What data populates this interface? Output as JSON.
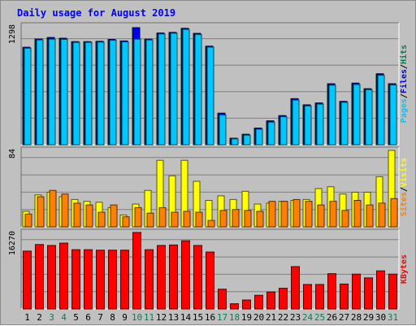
{
  "chart_data": [
    {
      "type": "bar",
      "title": "Daily usage for August 2019",
      "categories": [
        "1",
        "2",
        "3",
        "4",
        "5",
        "6",
        "7",
        "8",
        "9",
        "10",
        "11",
        "12",
        "13",
        "14",
        "15",
        "16",
        "17",
        "18",
        "19",
        "20",
        "21",
        "22",
        "23",
        "24",
        "25",
        "26",
        "27",
        "28",
        "29",
        "30",
        "31"
      ],
      "weekend_days": [
        "3",
        "4",
        "10",
        "11",
        "17",
        "18",
        "24",
        "25",
        "31"
      ],
      "ylim": [
        0,
        1298
      ],
      "ymax_label": "1298",
      "ylabel_parts": [
        "Pages",
        "/",
        "Files",
        "/",
        "Hits"
      ],
      "series": [
        {
          "name": "Hits",
          "color": "#00805c",
          "values": [
            1080,
            1172,
            1188,
            1180,
            1142,
            1142,
            1146,
            1167,
            1150,
            1298,
            1170,
            1238,
            1245,
            1290,
            1234,
            1092,
            349,
            72,
            115,
            184,
            264,
            322,
            510,
            442,
            462,
            676,
            480,
            682,
            620,
            786,
            676
          ]
        },
        {
          "name": "Files",
          "color": "#0000ff",
          "values": [
            1080,
            1172,
            1188,
            1180,
            1142,
            1142,
            1146,
            1167,
            1150,
            1298,
            1170,
            1238,
            1245,
            1290,
            1234,
            1092,
            349,
            72,
            115,
            184,
            264,
            322,
            510,
            442,
            462,
            676,
            480,
            682,
            620,
            786,
            676
          ]
        },
        {
          "name": "Pages",
          "color": "#00c8ff",
          "values": [
            1070,
            1162,
            1170,
            1168,
            1135,
            1135,
            1138,
            1158,
            1140,
            1170,
            1162,
            1228,
            1236,
            1278,
            1222,
            1082,
            330,
            65,
            106,
            172,
            250,
            310,
            495,
            430,
            450,
            660,
            470,
            668,
            610,
            770,
            662
          ]
        }
      ]
    },
    {
      "type": "bar",
      "ylim": [
        0,
        84
      ],
      "ymax_label": "84",
      "ylabel_parts": [
        "Sites",
        "/",
        "Visits"
      ],
      "series": [
        {
          "name": "Visits",
          "color": "#ffff00",
          "values": [
            17,
            35,
            38,
            33,
            30,
            28,
            27,
            21,
            13,
            25,
            40,
            73,
            56,
            73,
            50,
            29,
            34,
            30,
            39,
            25,
            26,
            28,
            29,
            30,
            42,
            44,
            36,
            38,
            38,
            55,
            84
          ]
        },
        {
          "name": "Sites",
          "color": "#ff8000",
          "values": [
            14,
            33,
            40,
            36,
            26,
            24,
            16,
            24,
            11,
            21,
            15,
            21,
            16,
            17,
            16,
            7,
            18,
            19,
            18,
            17,
            28,
            28,
            30,
            28,
            24,
            28,
            18,
            29,
            24,
            26,
            31
          ]
        }
      ]
    },
    {
      "type": "bar",
      "ylim": [
        0,
        16270
      ],
      "ymax_label": "16270",
      "ylabel_parts": [
        "KBytes"
      ],
      "series": [
        {
          "name": "KBytes",
          "color": "#ff0000",
          "values": [
            12300,
            13700,
            13500,
            14000,
            12600,
            12600,
            12500,
            12500,
            12500,
            16270,
            12600,
            13500,
            13600,
            14500,
            13500,
            12100,
            4200,
            1100,
            1900,
            2900,
            3600,
            4400,
            9000,
            5200,
            5200,
            7500,
            5300,
            7400,
            6600,
            8100,
            7400
          ]
        }
      ]
    }
  ]
}
